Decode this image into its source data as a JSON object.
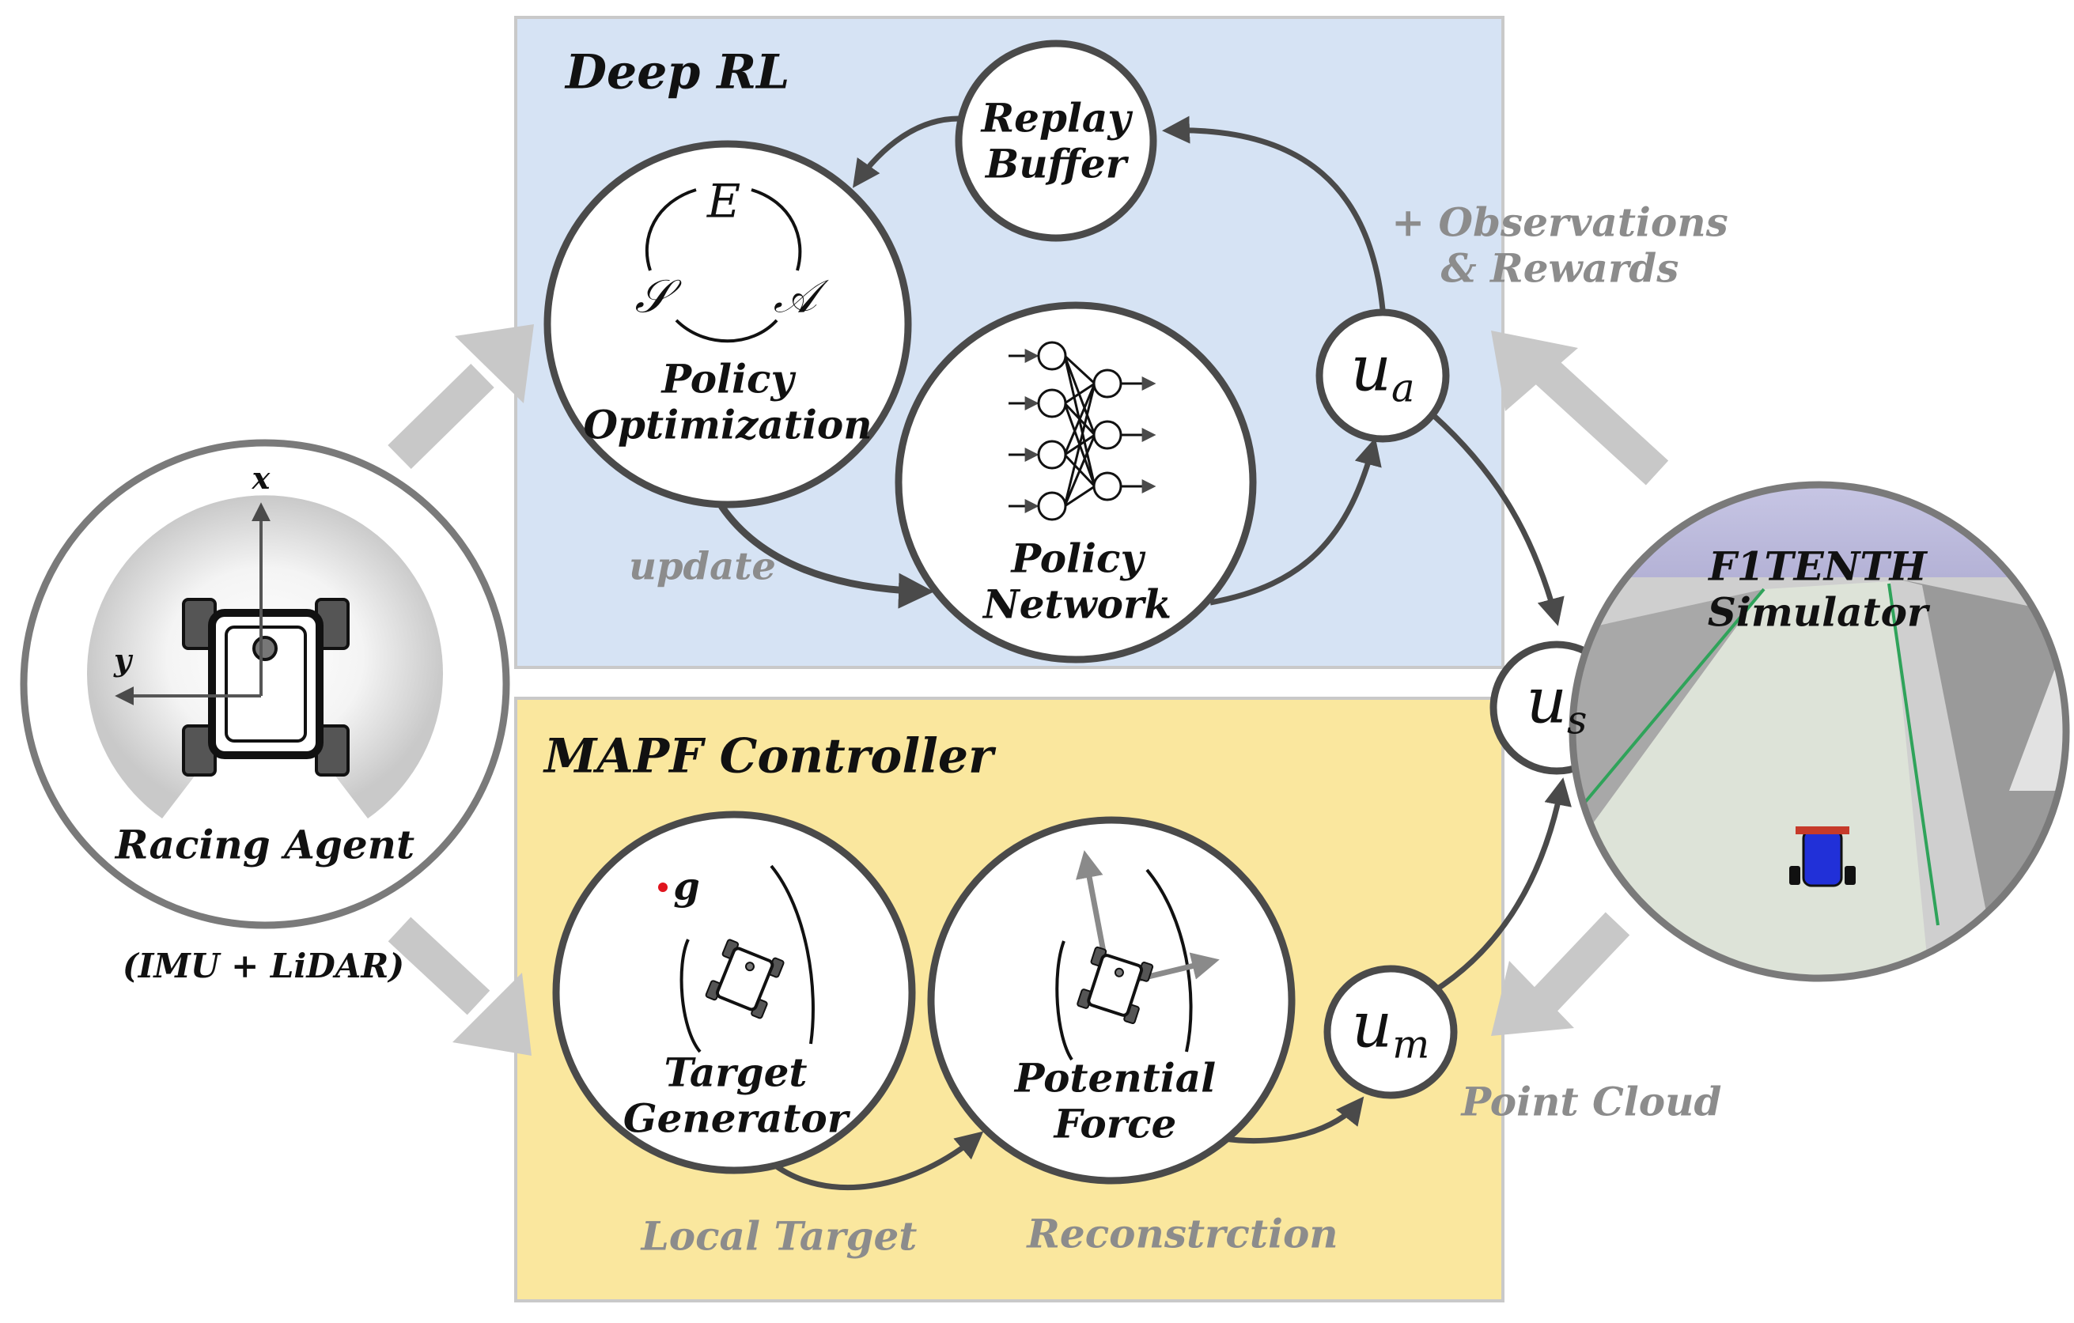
{
  "panels": {
    "deep_rl": {
      "title": "Deep RL",
      "fill": "#d6e3f4"
    },
    "mapf": {
      "title": "MAPF Controller",
      "fill": "#fae79e"
    }
  },
  "nodes": {
    "replay_buffer": {
      "line1": "Replay",
      "line2": "Buffer"
    },
    "policy_optimization": {
      "line1": "Policy",
      "line2": "Optimization",
      "cycle": {
        "e": "E",
        "s": "𝒮",
        "a": "𝒜"
      }
    },
    "policy_network": {
      "line1": "Policy",
      "line2": "Network"
    },
    "racing_agent": {
      "label": "Racing Agent",
      "sensors": "(IMU + LiDAR)",
      "x_axis": "x",
      "y_axis": "y"
    },
    "target_generator": {
      "line1": "Target",
      "line2": "Generator",
      "goal": "g"
    },
    "potential_force": {
      "line1": "Potential",
      "line2": "Force"
    },
    "simulator": {
      "line1": "F1TENTH",
      "line2": "Simulator"
    },
    "u_a": {
      "base": "u",
      "sub": "a"
    },
    "u_s": {
      "base": "u",
      "sub": "s"
    },
    "u_m": {
      "base": "u",
      "sub": "m"
    }
  },
  "edge_labels": {
    "update": "update",
    "observations": "+ Observations",
    "rewards": "& Rewards",
    "local_target": "Local Target",
    "reconstruction": "Reconstrction",
    "point_cloud": "Point Cloud"
  },
  "colors": {
    "node_stroke": "#4a4a4a",
    "arrow": "#4a4a4a",
    "thick_arrow": "#c8c8c8",
    "goal_dot": "#e0141e",
    "lane_line": "#2fa35a",
    "car": "#2130d8"
  }
}
